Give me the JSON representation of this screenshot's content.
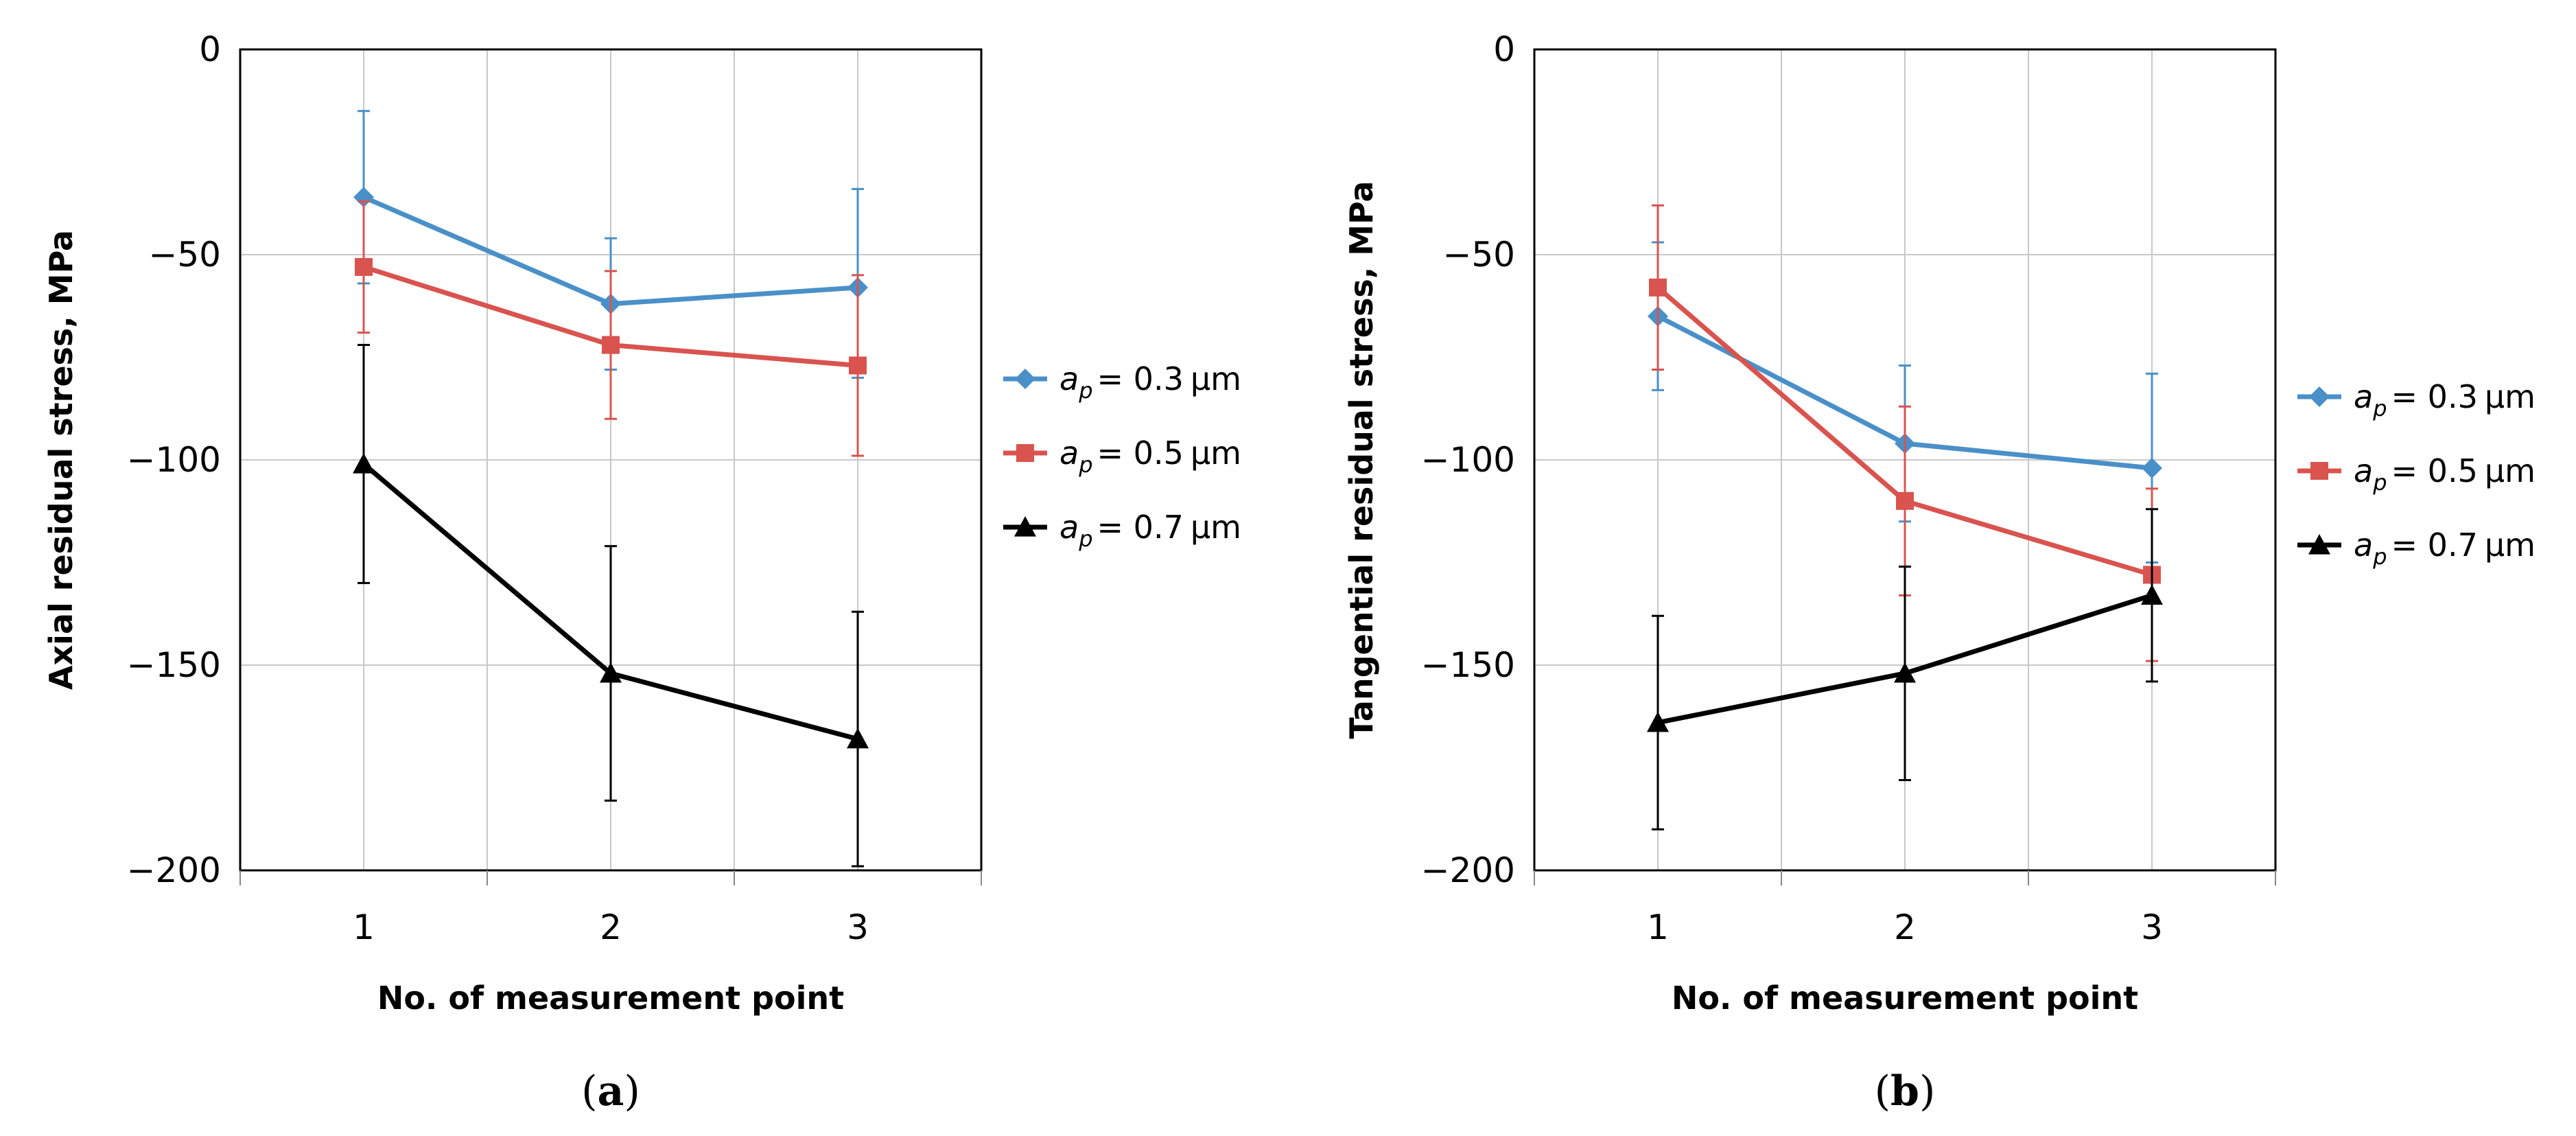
{
  "chart_data": [
    {
      "type": "line",
      "panel": "a",
      "panel_label": "a",
      "ylabel": "Axial residual stress, MPa",
      "xlabel": "No. of measurement point",
      "ylim": [
        -200,
        0
      ],
      "yticks": [
        0,
        -50,
        -100,
        -150,
        -200
      ],
      "ytick_labels": [
        "0",
        "-50",
        "-100",
        "-150",
        "-200"
      ],
      "categories": [
        "1",
        "2",
        "3"
      ],
      "grid": true,
      "legend_position": "right",
      "series": [
        {
          "name": "a_p = 0.3 µm",
          "legend_var": "a",
          "legend_sub": "p",
          "legend_value": "= 0.3",
          "legend_unit": "µm",
          "color": "#4a90c8",
          "marker": "diamond",
          "values": [
            -36,
            -62,
            -58
          ],
          "err_low": [
            -57,
            -78,
            -80
          ],
          "err_high": [
            -15,
            -46,
            -34
          ]
        },
        {
          "name": "a_p = 0.5 µm",
          "legend_var": "a",
          "legend_sub": "p",
          "legend_value": "= 0.5",
          "legend_unit": "µm",
          "color": "#d9534f",
          "marker": "square",
          "values": [
            -53,
            -72,
            -77
          ],
          "err_low": [
            -69,
            -90,
            -99
          ],
          "err_high": [
            -37,
            -54,
            -55
          ]
        },
        {
          "name": "a_p = 0.7 µm",
          "legend_var": "a",
          "legend_sub": "p",
          "legend_value": "= 0.7",
          "legend_unit": "µm",
          "color": "#000000",
          "marker": "triangle",
          "values": [
            -101,
            -152,
            -168
          ],
          "err_low": [
            -130,
            -183,
            -199
          ],
          "err_high": [
            -72,
            -121,
            -137
          ]
        }
      ]
    },
    {
      "type": "line",
      "panel": "b",
      "panel_label": "b",
      "ylabel": "Tangential residual stress, MPa",
      "xlabel": "No. of measurement point",
      "ylim": [
        -200,
        0
      ],
      "yticks": [
        0,
        -50,
        -100,
        -150,
        -200
      ],
      "ytick_labels": [
        "0",
        "-50",
        "-100",
        "-150",
        "-200"
      ],
      "categories": [
        "1",
        "2",
        "3"
      ],
      "grid": true,
      "legend_position": "right",
      "series": [
        {
          "name": "a_p = 0.3 µm",
          "legend_var": "a",
          "legend_sub": "p",
          "legend_value": "= 0.3",
          "legend_unit": "µm",
          "color": "#4a90c8",
          "marker": "diamond",
          "values": [
            -65,
            -96,
            -102
          ],
          "err_low": [
            -83,
            -115,
            -125
          ],
          "err_high": [
            -47,
            -77,
            -79
          ]
        },
        {
          "name": "a_p = 0.5 µm",
          "legend_var": "a",
          "legend_sub": "p",
          "legend_value": "= 0.5",
          "legend_unit": "µm",
          "color": "#d9534f",
          "marker": "square",
          "values": [
            -58,
            -110,
            -128
          ],
          "err_low": [
            -78,
            -133,
            -149
          ],
          "err_high": [
            -38,
            -87,
            -107
          ]
        },
        {
          "name": "a_p = 0.7 µm",
          "legend_var": "a",
          "legend_sub": "p",
          "legend_value": "= 0.7",
          "legend_unit": "µm",
          "color": "#000000",
          "marker": "triangle",
          "values": [
            -164,
            -152,
            -133
          ],
          "err_low": [
            -190,
            -178,
            -154
          ],
          "err_high": [
            -138,
            -126,
            -112
          ]
        }
      ]
    }
  ]
}
